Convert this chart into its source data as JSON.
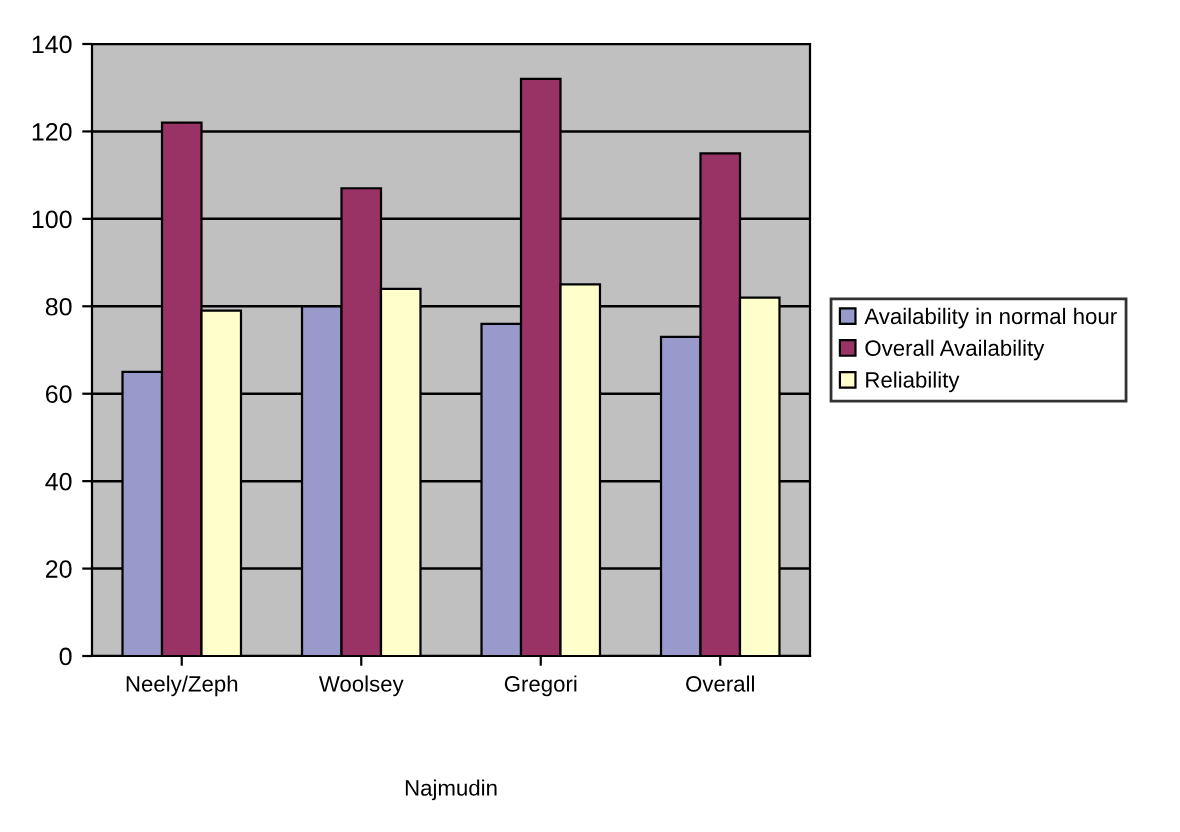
{
  "chart_data": {
    "type": "bar",
    "categories": [
      "Neely/Zeph",
      "Woolsey",
      "Gregori",
      "Overall"
    ],
    "series": [
      {
        "name": "Availability in normal hour",
        "color": "#9999cc",
        "values": [
          65,
          80,
          76,
          73
        ]
      },
      {
        "name": "Overall Availability",
        "color": "#993366",
        "values": [
          122,
          107,
          132,
          115
        ]
      },
      {
        "name": "Reliability",
        "color": "#ffffcc",
        "values": [
          79,
          84,
          85,
          82
        ]
      }
    ],
    "xlabel": "Najmudin",
    "ylim": [
      0,
      140
    ],
    "yticks": [
      0,
      20,
      40,
      60,
      80,
      100,
      120,
      140
    ],
    "grid": "y",
    "legend": "right"
  }
}
